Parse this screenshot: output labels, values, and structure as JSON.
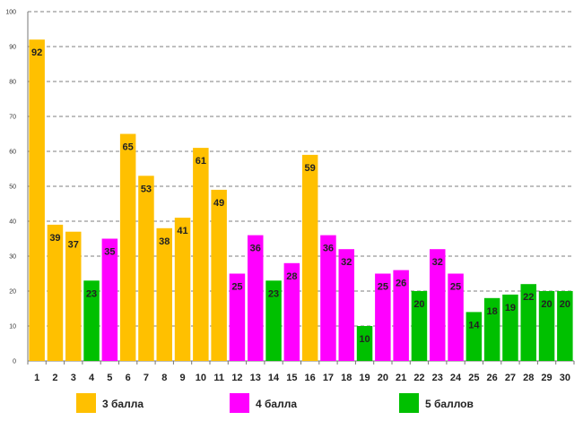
{
  "chart_data": {
    "type": "bar",
    "title": "",
    "xlabel": "",
    "ylabel": "",
    "ylim": [
      0,
      100
    ],
    "yticks": [
      0,
      10,
      20,
      30,
      40,
      50,
      60,
      70,
      80,
      90,
      100
    ],
    "grid": true,
    "categories": [
      "1",
      "2",
      "3",
      "4",
      "5",
      "6",
      "7",
      "8",
      "9",
      "10",
      "11",
      "12",
      "13",
      "14",
      "15",
      "16",
      "17",
      "18",
      "19",
      "20",
      "21",
      "22",
      "23",
      "24",
      "25",
      "26",
      "27",
      "28",
      "29",
      "30"
    ],
    "values": [
      92,
      39,
      37,
      23,
      35,
      65,
      53,
      38,
      41,
      61,
      49,
      25,
      36,
      23,
      28,
      59,
      36,
      32,
      10,
      25,
      26,
      20,
      32,
      25,
      14,
      18,
      19,
      22,
      20,
      20
    ],
    "groups": [
      "3 балла",
      "3 балла",
      "3 балла",
      "5 баллов",
      "4 балла",
      "3 балла",
      "3 балла",
      "3 балла",
      "3 балла",
      "3 балла",
      "3 балла",
      "4 балла",
      "4 балла",
      "5 баллов",
      "4 балла",
      "3 балла",
      "4 балла",
      "4 балла",
      "5 баллов",
      "4 балла",
      "4 балла",
      "5 баллов",
      "4 балла",
      "4 балла",
      "5 баллов",
      "5 баллов",
      "5 баллов",
      "5 баллов",
      "5 баллов",
      "5 баллов"
    ],
    "legend": [
      {
        "name": "3 балла",
        "color": "#FFC000"
      },
      {
        "name": "4 балла",
        "color": "#FF00FF"
      },
      {
        "name": "5 баллов",
        "color": "#00C000"
      }
    ],
    "legend_position": "bottom"
  }
}
